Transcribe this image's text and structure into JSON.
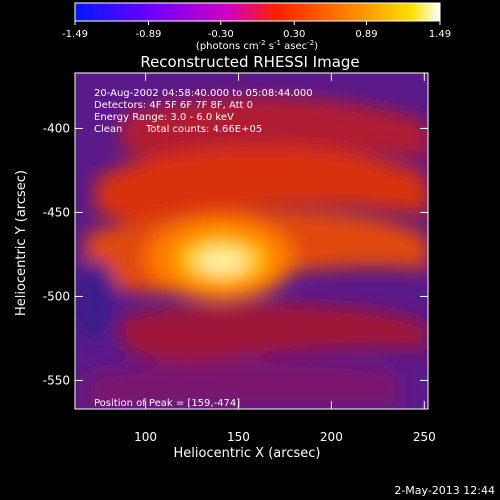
{
  "chart_data": {
    "type": "heatmap",
    "title": "Reconstructed RHESSI Image",
    "xlabel": "Heliocentric X (arcsec)",
    "ylabel": "Heliocentric Y (arcsec)",
    "xlim": [
      62,
      252
    ],
    "ylim": [
      -567,
      -367
    ],
    "x_ticks": [
      100,
      150,
      200,
      250
    ],
    "y_ticks": [
      -400,
      -450,
      -500,
      -550
    ],
    "colorbar": {
      "ticks": [
        "-1.49",
        "-0.89",
        "-0.30",
        "0.30",
        "0.89",
        "1.49"
      ],
      "range": [
        -1.49,
        1.49
      ],
      "unit_parts": {
        "pre": "(photons cm",
        "exp1": "-2",
        "mid1": " s",
        "exp2": "-1",
        "mid2": " asec",
        "exp3": "-2",
        "post": ")"
      },
      "colorscale": [
        "#0000ff",
        "#8000ff",
        "#ff00ff",
        "#ff0000",
        "#ff8000",
        "#ffff00",
        "#ffffff"
      ]
    },
    "annotations": {
      "time": "20-Aug-2002 04:58:40.000 to 05:08:44.000",
      "detectors": "Detectors: 4F 5F 6F 7F 8F, Att 0",
      "energy": "Energy Range: 3.0 - 6.0 keV",
      "clean_label": "Clean",
      "total_counts": "Total counts: 4.66E+05",
      "peak": "Position of Peak = [159,-474]"
    },
    "footer_date": "2-May-2013 12:44",
    "peak_position": [
      159,
      -474
    ],
    "intensity_bands": [
      {
        "y": -380,
        "x": 190,
        "value": 0.55
      },
      {
        "y": -412,
        "x": 175,
        "value": 0.75
      },
      {
        "y": -440,
        "x": 160,
        "value": 0.7
      },
      {
        "y": -474,
        "x": 159,
        "value": 1.49
      },
      {
        "y": -510,
        "x": 170,
        "value": 0.45
      },
      {
        "y": -540,
        "x": 185,
        "value": 0.4
      }
    ]
  }
}
